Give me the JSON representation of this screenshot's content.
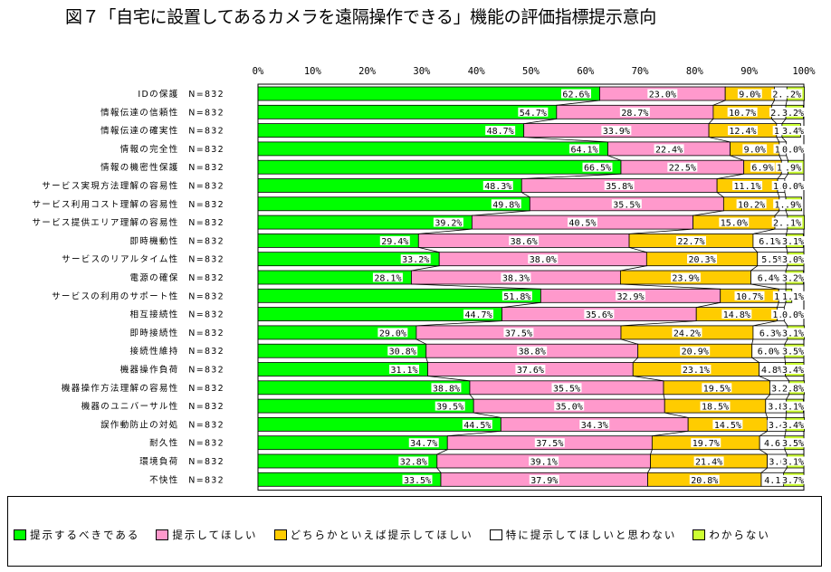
{
  "title": "図７「自宅に設置してあるカメラを遠隔操作できる」機能の評価指標提示意向",
  "chart_data": {
    "type": "bar",
    "stacked": true,
    "orientation": "horizontal",
    "xlim": [
      0,
      100
    ],
    "x_ticks": [
      "0%",
      "10%",
      "20%",
      "30%",
      "40%",
      "50%",
      "60%",
      "70%",
      "80%",
      "90%",
      "100%"
    ],
    "grid": false,
    "legend_position": "bottom",
    "categories": [
      "IDの保護　N=832",
      "情報伝達の信頼性　N=832",
      "情報伝達の確実性　N=832",
      "情報の完全性　N=832",
      "情報の機密性保護　N=832",
      "サービス実現方法理解の容易性　N=832",
      "サービス利用コスト理解の容易性　N=832",
      "サービス提供エリア理解の容易性　N=832",
      "即時機動性　N=832",
      "サービスのリアルタイム性　N=832",
      "電源の確保　N=832",
      "サービスの利用のサポート性　N=832",
      "相互接続性　N=832",
      "即時接続性　N=832",
      "接続性維持　N=832",
      "機器操作負荷　N=832",
      "機器操作方法理解の容易性　N=832",
      "機器のユニバーサル性　N=832",
      "誤作動防止の対処　N=832",
      "耐久性　N=832",
      "環境負荷　N=832",
      "不快性　N=832"
    ],
    "series": [
      {
        "name": "提示するべきである",
        "color": "#00ff00",
        "values": [
          62.6,
          54.7,
          48.7,
          64.1,
          66.5,
          48.3,
          49.8,
          39.2,
          29.4,
          33.2,
          28.1,
          51.8,
          44.7,
          29.0,
          30.8,
          31.1,
          38.8,
          39.5,
          44.5,
          34.7,
          32.8,
          33.5
        ]
      },
      {
        "name": "提示してほしい",
        "color": "#ff99cc",
        "values": [
          23.0,
          28.7,
          33.9,
          22.4,
          22.5,
          35.8,
          35.5,
          40.5,
          38.6,
          38.0,
          38.3,
          32.9,
          35.6,
          37.5,
          38.8,
          37.6,
          35.5,
          35.0,
          34.3,
          37.5,
          39.1,
          37.9
        ]
      },
      {
        "name": "どちらかといえば提示してほしい",
        "color": "#ffcc00",
        "values": [
          9.0,
          10.7,
          12.4,
          9.0,
          6.9,
          11.1,
          10.2,
          15.0,
          22.7,
          20.3,
          23.9,
          10.7,
          14.8,
          24.2,
          20.9,
          23.1,
          19.5,
          18.5,
          14.5,
          19.7,
          21.4,
          20.8
        ]
      },
      {
        "name": "特に提示してほしいと思わない",
        "color": "#ffffff",
        "values": [
          2.3,
          2.6,
          1.0,
          1.3,
          1.2,
          1.3,
          1.2,
          2.3,
          6.1,
          5.5,
          6.4,
          1.3,
          1.3,
          6.3,
          6.0,
          4.8,
          3.5,
          3.8,
          3.4,
          4.6,
          3.6,
          4.1
        ]
      },
      {
        "name": "わからない",
        "color": "#ccff33",
        "values": [
          3.2,
          3.2,
          3.4,
          0.0,
          2.9,
          0.0,
          2.9,
          3.1,
          3.1,
          3.0,
          3.2,
          1.1,
          0.0,
          3.1,
          3.5,
          3.4,
          2.8,
          3.1,
          3.4,
          3.5,
          3.1,
          3.7
        ]
      }
    ],
    "data_labels": [
      [
        "62.6%",
        "23.0%",
        "9.0%",
        "2.3",
        ".2%"
      ],
      [
        "54.7%",
        "28.7%",
        "10.7%",
        "2.6",
        "3.2%"
      ],
      [
        "48.7%",
        "33.9%",
        "12.4%",
        "1.",
        "3.4%"
      ],
      [
        "64.1%",
        "22.4%",
        "9.0%",
        "1.3",
        "0.0%"
      ],
      [
        "66.5%",
        "22.5%",
        "6.9%",
        "1.2",
        ".9%"
      ],
      [
        "48.3%",
        "35.8%",
        "11.1%",
        "1.3",
        "0.0%"
      ],
      [
        "49.8%",
        "35.5%",
        "10.2%",
        "1.2",
        ".9%"
      ],
      [
        "39.2%",
        "40.5%",
        "15.0%",
        "2.3",
        ".1%"
      ],
      [
        "29.4%",
        "38.6%",
        "22.7%",
        "6.1%",
        "3.1%"
      ],
      [
        "33.2%",
        "38.0%",
        "20.3%",
        "5.5%",
        "3.0%"
      ],
      [
        "28.1%",
        "38.3%",
        "23.9%",
        "6.4%",
        "3.2%"
      ],
      [
        "51.8%",
        "32.9%",
        "10.7%",
        "1.3",
        "1.1%"
      ],
      [
        "44.7%",
        "35.6%",
        "14.8%",
        "1.3",
        "0.0%"
      ],
      [
        "29.0%",
        "37.5%",
        "24.2%",
        "6.3%",
        "3.1%"
      ],
      [
        "30.8%",
        "38.8%",
        "20.9%",
        "6.0%",
        "3.5%"
      ],
      [
        "31.1%",
        "37.6%",
        "23.1%",
        "4.8%",
        "3.4%"
      ],
      [
        "38.8%",
        "35.5%",
        "19.5%",
        "3.5",
        "2.8%"
      ],
      [
        "39.5%",
        "35.0%",
        "18.5%",
        "3.8",
        "3.1%"
      ],
      [
        "44.5%",
        "34.3%",
        "14.5%",
        "3.4",
        "3.4%"
      ],
      [
        "34.7%",
        "37.5%",
        "19.7%",
        "4.6",
        "3.5%"
      ],
      [
        "32.8%",
        "39.1%",
        "21.4%",
        "3.6",
        "3.1%"
      ],
      [
        "33.5%",
        "37.9%",
        "20.8%",
        "4.1",
        "3.7%"
      ]
    ]
  }
}
